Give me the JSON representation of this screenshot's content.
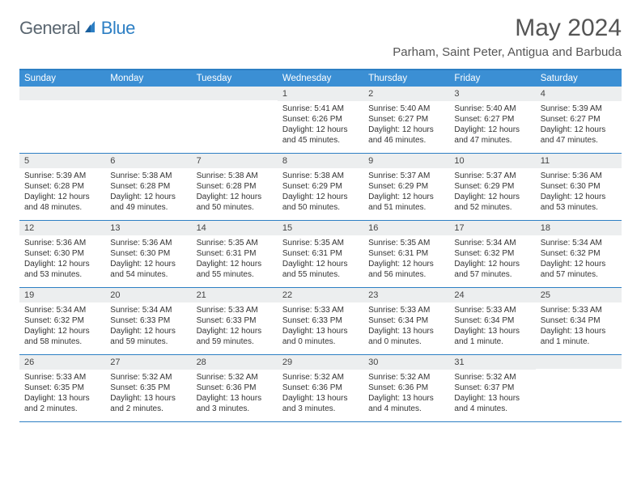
{
  "logo": {
    "general": "General",
    "blue": "Blue"
  },
  "title": "May 2024",
  "location": "Parham, Saint Peter, Antigua and Barbuda",
  "colors": {
    "brand_blue": "#2d7fc4",
    "header_bg": "#3b8fd4",
    "daynum_bg": "#eceeef",
    "text": "#333333",
    "logo_gray": "#5a6670"
  },
  "weekdays": [
    "Sunday",
    "Monday",
    "Tuesday",
    "Wednesday",
    "Thursday",
    "Friday",
    "Saturday"
  ],
  "weeks": [
    [
      null,
      null,
      null,
      {
        "n": "1",
        "sr": "5:41 AM",
        "ss": "6:26 PM",
        "dl": "12 hours and 45 minutes."
      },
      {
        "n": "2",
        "sr": "5:40 AM",
        "ss": "6:27 PM",
        "dl": "12 hours and 46 minutes."
      },
      {
        "n": "3",
        "sr": "5:40 AM",
        "ss": "6:27 PM",
        "dl": "12 hours and 47 minutes."
      },
      {
        "n": "4",
        "sr": "5:39 AM",
        "ss": "6:27 PM",
        "dl": "12 hours and 47 minutes."
      }
    ],
    [
      {
        "n": "5",
        "sr": "5:39 AM",
        "ss": "6:28 PM",
        "dl": "12 hours and 48 minutes."
      },
      {
        "n": "6",
        "sr": "5:38 AM",
        "ss": "6:28 PM",
        "dl": "12 hours and 49 minutes."
      },
      {
        "n": "7",
        "sr": "5:38 AM",
        "ss": "6:28 PM",
        "dl": "12 hours and 50 minutes."
      },
      {
        "n": "8",
        "sr": "5:38 AM",
        "ss": "6:29 PM",
        "dl": "12 hours and 50 minutes."
      },
      {
        "n": "9",
        "sr": "5:37 AM",
        "ss": "6:29 PM",
        "dl": "12 hours and 51 minutes."
      },
      {
        "n": "10",
        "sr": "5:37 AM",
        "ss": "6:29 PM",
        "dl": "12 hours and 52 minutes."
      },
      {
        "n": "11",
        "sr": "5:36 AM",
        "ss": "6:30 PM",
        "dl": "12 hours and 53 minutes."
      }
    ],
    [
      {
        "n": "12",
        "sr": "5:36 AM",
        "ss": "6:30 PM",
        "dl": "12 hours and 53 minutes."
      },
      {
        "n": "13",
        "sr": "5:36 AM",
        "ss": "6:30 PM",
        "dl": "12 hours and 54 minutes."
      },
      {
        "n": "14",
        "sr": "5:35 AM",
        "ss": "6:31 PM",
        "dl": "12 hours and 55 minutes."
      },
      {
        "n": "15",
        "sr": "5:35 AM",
        "ss": "6:31 PM",
        "dl": "12 hours and 55 minutes."
      },
      {
        "n": "16",
        "sr": "5:35 AM",
        "ss": "6:31 PM",
        "dl": "12 hours and 56 minutes."
      },
      {
        "n": "17",
        "sr": "5:34 AM",
        "ss": "6:32 PM",
        "dl": "12 hours and 57 minutes."
      },
      {
        "n": "18",
        "sr": "5:34 AM",
        "ss": "6:32 PM",
        "dl": "12 hours and 57 minutes."
      }
    ],
    [
      {
        "n": "19",
        "sr": "5:34 AM",
        "ss": "6:32 PM",
        "dl": "12 hours and 58 minutes."
      },
      {
        "n": "20",
        "sr": "5:34 AM",
        "ss": "6:33 PM",
        "dl": "12 hours and 59 minutes."
      },
      {
        "n": "21",
        "sr": "5:33 AM",
        "ss": "6:33 PM",
        "dl": "12 hours and 59 minutes."
      },
      {
        "n": "22",
        "sr": "5:33 AM",
        "ss": "6:33 PM",
        "dl": "13 hours and 0 minutes."
      },
      {
        "n": "23",
        "sr": "5:33 AM",
        "ss": "6:34 PM",
        "dl": "13 hours and 0 minutes."
      },
      {
        "n": "24",
        "sr": "5:33 AM",
        "ss": "6:34 PM",
        "dl": "13 hours and 1 minute."
      },
      {
        "n": "25",
        "sr": "5:33 AM",
        "ss": "6:34 PM",
        "dl": "13 hours and 1 minute."
      }
    ],
    [
      {
        "n": "26",
        "sr": "5:33 AM",
        "ss": "6:35 PM",
        "dl": "13 hours and 2 minutes."
      },
      {
        "n": "27",
        "sr": "5:32 AM",
        "ss": "6:35 PM",
        "dl": "13 hours and 2 minutes."
      },
      {
        "n": "28",
        "sr": "5:32 AM",
        "ss": "6:36 PM",
        "dl": "13 hours and 3 minutes."
      },
      {
        "n": "29",
        "sr": "5:32 AM",
        "ss": "6:36 PM",
        "dl": "13 hours and 3 minutes."
      },
      {
        "n": "30",
        "sr": "5:32 AM",
        "ss": "6:36 PM",
        "dl": "13 hours and 4 minutes."
      },
      {
        "n": "31",
        "sr": "5:32 AM",
        "ss": "6:37 PM",
        "dl": "13 hours and 4 minutes."
      },
      null
    ]
  ],
  "labels": {
    "sunrise": "Sunrise: ",
    "sunset": "Sunset: ",
    "daylight": "Daylight: "
  }
}
